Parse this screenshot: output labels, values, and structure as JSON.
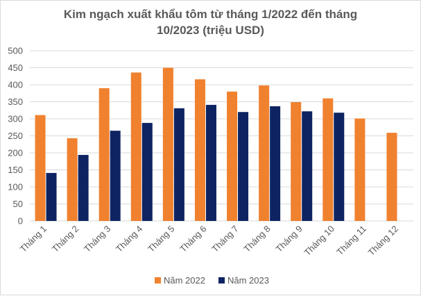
{
  "colors": {
    "series_2022": "#F0812F",
    "series_2023": "#0E2462",
    "gridline": "#D9D9D9",
    "text": "#595959"
  },
  "chart_data": {
    "type": "bar",
    "title": "Kim ngạch xuất khẩu tôm từ tháng 1/2022 đến tháng\n10/2023 (triệu USD)",
    "xlabel": "",
    "ylabel": "",
    "ylim": [
      0,
      500
    ],
    "yticks": [
      0,
      50,
      100,
      150,
      200,
      250,
      300,
      350,
      400,
      450,
      500
    ],
    "grid": true,
    "legend_position": "bottom",
    "categories": [
      "Tháng 1",
      "Tháng 2",
      "Tháng 3",
      "Tháng 4",
      "Tháng 5",
      "Tháng 6",
      "Tháng 7",
      "Tháng 8",
      "Tháng 9",
      "Tháng 10",
      "Tháng 11",
      "Tháng 12"
    ],
    "series": [
      {
        "name": "Năm 2022",
        "color": "#F0812F",
        "values": [
          311,
          243,
          390,
          436,
          450,
          416,
          380,
          398,
          349,
          360,
          301,
          259
        ]
      },
      {
        "name": "Năm 2023",
        "color": "#0E2462",
        "values": [
          141,
          194,
          265,
          288,
          331,
          341,
          320,
          337,
          322,
          318,
          null,
          null
        ]
      }
    ]
  }
}
